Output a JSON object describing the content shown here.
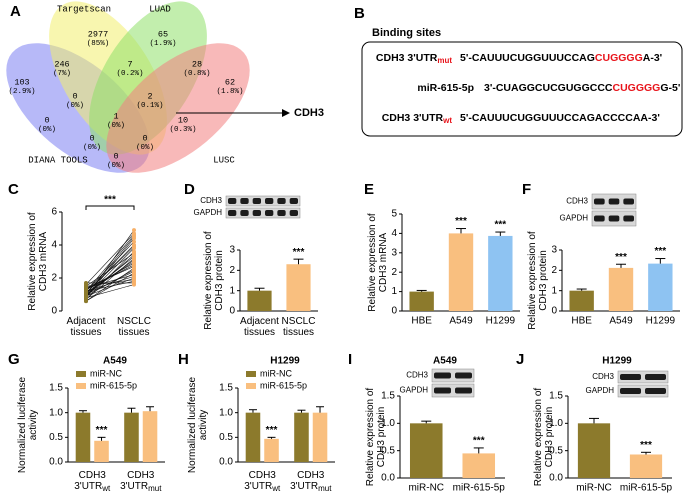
{
  "chart_data": [
    {
      "panel": "A",
      "type": "venn",
      "sets": [
        {
          "name": "DIANA TOOLS",
          "color": "#7b7ff2",
          "label_color": "#2b3fd6"
        },
        {
          "name": "Targetscan",
          "color": "#f2ee6e",
          "label_color": "#8a8a1c"
        },
        {
          "name": "LUAD",
          "color": "#8fe069",
          "label_color": "#3a9a2a"
        },
        {
          "name": "LUSC",
          "color": "#f27f7f",
          "label_color": "#e03030"
        }
      ],
      "values": [
        2977,
        65,
        246,
        7,
        28,
        103,
        0,
        2,
        62,
        1,
        0,
        10,
        0,
        0,
        0
      ],
      "percent_labels": [
        "(85%)",
        "(1.9%)",
        "(7%)",
        "(0.2%)",
        "(0.8%)",
        "(2.9%)",
        "(0%)",
        "(0.1%)",
        "(1.8%)",
        "(0%)",
        "(0%)",
        "(0.3%)",
        "(0%)",
        "(0%)",
        "(0%)"
      ],
      "annotation": "CDH3",
      "annotation_color": "#e02020"
    },
    {
      "panel": "B",
      "type": "sequence",
      "title": "Binding sites",
      "rows": [
        {
          "label": "CDH3 3'UTR",
          "subscript": "mut",
          "subscript_color": "#e8141b",
          "parts": [
            "5'-CAUUUCUGGUUUCCAG",
            "CUGGGG",
            "A-3'"
          ],
          "part_colors": [
            "#000000",
            "#e8141b",
            "#000000"
          ]
        },
        {
          "label": "miR-615-5p",
          "parts": [
            "3'-CUAGGCUCGUGGCCC",
            "CUGGGG",
            "G-5'"
          ],
          "part_colors": [
            "#000000",
            "#e8141b",
            "#000000"
          ]
        },
        {
          "label": "CDH3 3'UTR",
          "subscript": "wt",
          "subscript_color": "#e8141b",
          "parts": [
            "5'-CAUUUCUGGUUUCCAGACCCCAA-3'"
          ],
          "part_colors": [
            "#000000"
          ]
        }
      ]
    },
    {
      "panel": "C",
      "type": "paired",
      "y_label": "Relative expression of\nCDH3 mRNA",
      "categories": [
        "Adjacent\ntissues",
        "NSCLC\ntissues"
      ],
      "groups": [
        {
          "color": "#8c7a2c",
          "values": [
            0.8,
            1.0,
            1.2,
            0.9,
            1.5,
            0.7,
            1.1,
            1.3,
            0.6,
            1.0,
            1.4,
            0.9,
            1.2,
            0.8,
            1.6,
            1.1,
            0.7,
            1.0,
            1.3,
            0.9,
            1.2,
            1.5,
            0.8,
            1.1,
            1.0,
            1.4,
            0.6,
            1.2,
            0.9,
            1.7
          ]
        },
        {
          "color": "#f7b068",
          "values": [
            4.9,
            4.5,
            4.2,
            3.8,
            3.5,
            3.2,
            3.0,
            2.8,
            2.6,
            2.4,
            2.2,
            2.0,
            1.8,
            1.6,
            4.7,
            4.0,
            3.6,
            3.3,
            2.9,
            2.5,
            2.1,
            1.9,
            4.4,
            3.9,
            3.1,
            2.7,
            2.3,
            4.6,
            3.4,
            1.7
          ]
        }
      ],
      "ylim": [
        0,
        6
      ],
      "yticks": [
        0,
        2,
        4,
        6
      ],
      "annotation": "***"
    },
    {
      "panel": "D",
      "type": "bar",
      "y_label": "Relative expression of\nCDH3 protein",
      "categories": [
        "Adjacent\ntissues",
        "NSCLC\ntissues"
      ],
      "values": [
        1.0,
        2.3
      ],
      "errors": [
        0.12,
        0.25
      ],
      "colors": [
        "#8c7a2c",
        "#f9bf7f"
      ],
      "significance": [
        null,
        "***"
      ],
      "ylim": [
        0,
        3
      ],
      "yticks": [
        0,
        1,
        2,
        3
      ],
      "blot_labels": [
        "CDH3",
        "GAPDH"
      ]
    },
    {
      "panel": "E",
      "type": "bar",
      "y_label": "Relative expression of\nCDH3 mRNA",
      "categories": [
        "HBE",
        "A549",
        "H1299"
      ],
      "values": [
        1.0,
        4.0,
        3.87
      ],
      "errors": [
        0.06,
        0.25,
        0.2
      ],
      "colors": [
        "#8c7a2c",
        "#f9bf7f",
        "#8ec3f2"
      ],
      "significance": [
        null,
        "***",
        "***"
      ],
      "ylim": [
        0,
        5
      ],
      "yticks": [
        0,
        1,
        2,
        3,
        4,
        5
      ]
    },
    {
      "panel": "F",
      "type": "bar",
      "y_label": "Relative expression of\nCDH3 protein",
      "categories": [
        "HBE",
        "A549",
        "H1299"
      ],
      "values": [
        1.0,
        2.12,
        2.33
      ],
      "errors": [
        0.08,
        0.18,
        0.25
      ],
      "colors": [
        "#8c7a2c",
        "#f9bf7f",
        "#8ec3f2"
      ],
      "significance": [
        null,
        "***",
        "***"
      ],
      "ylim": [
        0,
        3
      ],
      "yticks": [
        0,
        1,
        2,
        3
      ],
      "blot_labels": [
        "CDH3",
        "GAPDH"
      ]
    },
    {
      "panel": "G",
      "type": "grouped_bar",
      "title": "A549",
      "y_label": "Normalized luciferase\nactivity",
      "categories": [
        "CDH3\n3'UTR",
        "CDH3\n3'UTR"
      ],
      "category_subscripts": [
        "wt",
        "mut"
      ],
      "series": [
        {
          "name": "miR-NC",
          "color": "#8c7a2c",
          "values": [
            1.0,
            1.0
          ],
          "errors": [
            0.04,
            0.09
          ]
        },
        {
          "name": "miR-615-5p",
          "color": "#f9bf7f",
          "values": [
            0.43,
            1.03
          ],
          "errors": [
            0.07,
            0.09
          ],
          "significance": [
            "***",
            null
          ]
        }
      ],
      "ylim": [
        0,
        1.5
      ],
      "yticks": [
        {
          "value": 0,
          "label": "0.0"
        },
        {
          "value": 0.5,
          "label": "0.5"
        },
        {
          "value": 1,
          "label": "1.0"
        },
        {
          "value": 1.5,
          "label": "1.5"
        }
      ],
      "legend": "top-left"
    },
    {
      "panel": "H",
      "type": "grouped_bar",
      "title": "H1299",
      "y_label": "Normalized luciferase\nactivity",
      "categories": [
        "CDH3\n3'UTR",
        "CDH3\n3'UTR"
      ],
      "category_subscripts": [
        "wt",
        "mut"
      ],
      "series": [
        {
          "name": "miR-NC",
          "color": "#8c7a2c",
          "values": [
            1.0,
            1.0
          ],
          "errors": [
            0.06,
            0.05
          ]
        },
        {
          "name": "miR-615-5p",
          "color": "#f9bf7f",
          "values": [
            0.47,
            1.0
          ],
          "errors": [
            0.03,
            0.12
          ],
          "significance": [
            "***",
            null
          ]
        }
      ],
      "ylim": [
        0,
        1.5
      ],
      "yticks": [
        {
          "value": 0,
          "label": "0.0"
        },
        {
          "value": 0.5,
          "label": "0.5"
        },
        {
          "value": 1,
          "label": "1.0"
        },
        {
          "value": 1.5,
          "label": "1.5"
        }
      ],
      "legend": "top-left"
    },
    {
      "panel": "I",
      "type": "bar",
      "title": "A549",
      "y_label": "Relative expression of\nCDH3 protein",
      "categories": [
        "miR-NC",
        "miR-615-5p"
      ],
      "values": [
        1.0,
        0.45
      ],
      "errors": [
        0.04,
        0.1
      ],
      "colors": [
        "#8c7a2c",
        "#f9bf7f"
      ],
      "significance": [
        null,
        "***"
      ],
      "ylim": [
        0,
        1.5
      ],
      "yticks": [
        {
          "value": 0,
          "label": "0.0"
        },
        {
          "value": 0.5,
          "label": "0.5"
        },
        {
          "value": 1,
          "label": "1.0"
        },
        {
          "value": 1.5,
          "label": "1.5"
        }
      ],
      "blot_labels": [
        "CDH3",
        "GAPDH"
      ]
    },
    {
      "panel": "J",
      "type": "bar",
      "title": "H1299",
      "y_label": "Relative expression of\nCDH3 protein",
      "categories": [
        "miR-NC",
        "miR-615-5p"
      ],
      "values": [
        1.0,
        0.43
      ],
      "errors": [
        0.09,
        0.04
      ],
      "colors": [
        "#8c7a2c",
        "#f9bf7f"
      ],
      "significance": [
        null,
        "***"
      ],
      "ylim": [
        0,
        1.5
      ],
      "yticks": [
        {
          "value": 0,
          "label": "0.0"
        },
        {
          "value": 0.5,
          "label": "0.5"
        },
        {
          "value": 1,
          "label": "1.0"
        },
        {
          "value": 1.5,
          "label": "1.5"
        }
      ],
      "blot_labels": [
        "CDH3",
        "GAPDH"
      ]
    }
  ]
}
